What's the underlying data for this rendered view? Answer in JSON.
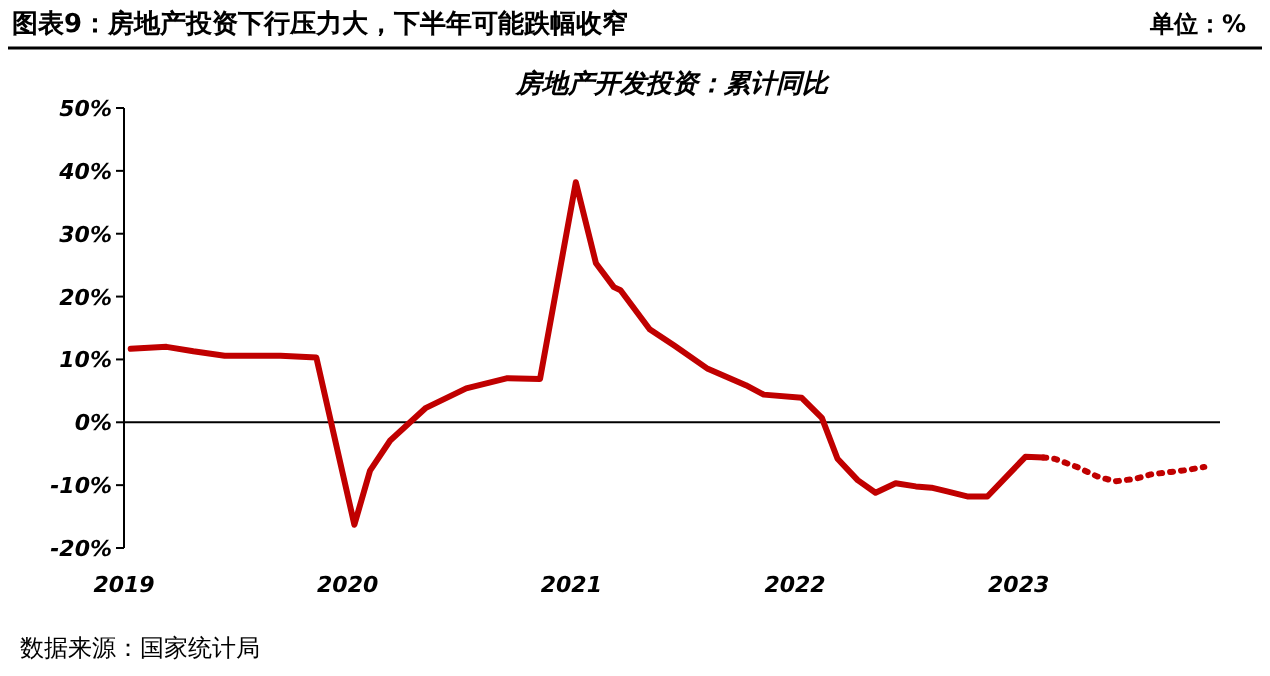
{
  "chart_data": {
    "type": "line",
    "title": "图表9：房地产投资下行压力大，下半年可能跌幅收窄",
    "subtitle": "房地产开发投资：累计同比",
    "annotations": [
      "单位：%",
      "数据来源：国家统计局"
    ],
    "xlim": [
      2019,
      2023.9
    ],
    "xticks": [
      2019,
      2020,
      2021,
      2022,
      2023
    ],
    "ylim": [
      -20,
      50
    ],
    "yticks": [
      {
        "value": -20,
        "label": "-20%"
      },
      {
        "value": -10,
        "label": "-10%"
      },
      {
        "value": 0,
        "label": "0%"
      },
      {
        "value": 10,
        "label": "10%"
      },
      {
        "value": 20,
        "label": "20%"
      },
      {
        "value": 30,
        "label": "30%"
      },
      {
        "value": 40,
        "label": "40%"
      },
      {
        "value": 50,
        "label": "50%"
      }
    ],
    "marker": "none",
    "series": [
      {
        "color": "#c00000",
        "line_style": "solid",
        "x": [
          2019.03,
          2019.19,
          2019.31,
          2019.45,
          2019.7,
          2019.86,
          2020.03,
          2020.1,
          2020.19,
          2020.35,
          2020.53,
          2020.71,
          2020.86,
          2021.02,
          2021.11,
          2021.19,
          2021.22,
          2021.35,
          2021.46,
          2021.61,
          2021.78,
          2021.86,
          2022.03,
          2022.12,
          2022.19,
          2022.28,
          2022.36,
          2022.45,
          2022.54,
          2022.61,
          2022.68,
          2022.77,
          2022.86,
          2023.03,
          2023.11
        ],
        "values": [
          11.7,
          12,
          11.3,
          10.6,
          10.6,
          10.3,
          -16.3,
          -7.7,
          -2.9,
          2.3,
          5.4,
          7,
          6.9,
          38.2,
          25.3,
          21.5,
          21,
          14.8,
          12.2,
          8.5,
          5.9,
          4.4,
          3.9,
          0.7,
          -5.8,
          -9.2,
          -11.2,
          -9.7,
          -10.2,
          -10.4,
          -11,
          -11.8,
          -11.8,
          -5.5,
          -5.6
        ]
      },
      {
        "color": "#c00000",
        "line_style": "dotted",
        "x": [
          2023.11,
          2023.16,
          2023.26,
          2023.35,
          2023.43,
          2023.52,
          2023.59,
          2023.68,
          2023.75,
          2023.83
        ],
        "values": [
          -5.6,
          -5.8,
          -7.1,
          -8.6,
          -9.4,
          -9,
          -8.3,
          -7.9,
          -7.6,
          -7.1
        ]
      }
    ]
  }
}
